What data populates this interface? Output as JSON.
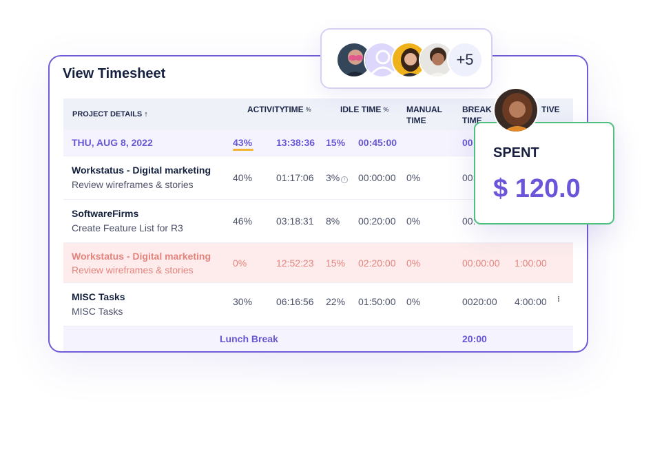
{
  "title": "View Timesheet",
  "avatar_group": {
    "more_count": "+5"
  },
  "spent_card": {
    "label": "SPENT",
    "value": "$ 120.0"
  },
  "columns": {
    "project": "PROJECT DETAILS ↑",
    "activity": "ACTIVITY",
    "time": "TIME",
    "idle": "IDLE TIME",
    "manual_1": "MANUAL",
    "manual_2": "TIME",
    "break_1": "BREAK",
    "break_2": "TIME",
    "productive": "TIVE",
    "percent": "%"
  },
  "date_row": {
    "label": "THU, AUG 8, 2022",
    "activity": "43%",
    "time": "13:38:36",
    "idle": "15%",
    "idle_time": "00:45:00",
    "break": "00"
  },
  "rows": [
    {
      "project": "Workstatus - Digital marketing",
      "task": "Review wireframes & stories",
      "activity": "40%",
      "time": "01:17:06",
      "idle": "3%",
      "idle_time": "00:00:00",
      "manual": "0%",
      "break": "00:",
      "extra": ""
    },
    {
      "project": "SoftwareFirms",
      "task": "Create Feature List for R3",
      "activity": "46%",
      "time": "03:18:31",
      "idle": "8%",
      "idle_time": "00:20:00",
      "manual": "0%",
      "break": "00:",
      "extra": ""
    },
    {
      "project": "Workstatus - Digital marketing",
      "task": "Review wireframes & stories",
      "activity": "0%",
      "time": "12:52:23",
      "idle": "15%",
      "idle_time": "02:20:00",
      "manual": "0%",
      "break": "00:00:00",
      "extra": "1:00:00"
    },
    {
      "project": "MISC Tasks",
      "task": "MISC Tasks",
      "activity": "30%",
      "time": "06:16:56",
      "idle": "22%",
      "idle_time": "01:50:00",
      "manual": "0%",
      "break": "0020:00",
      "extra": "4:00:00"
    }
  ],
  "break_row": {
    "label": "Lunch Break",
    "value": "20:00"
  },
  "icons": [
    "info-icon",
    "kebab-menu-icon",
    "avatar"
  ],
  "colors": {
    "accent": "#6c55d8",
    "card_border": "#6f5bd6",
    "spent_border": "#4fbf7f",
    "deleted_bg": "#fdeceb",
    "deleted_text": "#e4837d",
    "highlight": "#f2b233"
  }
}
